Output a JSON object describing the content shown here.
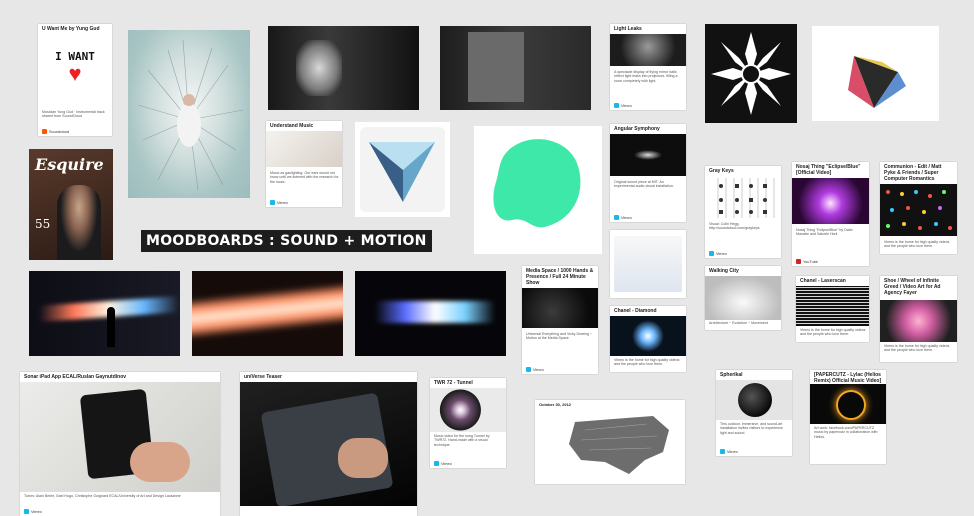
{
  "board": {
    "title": "MOODBOARDS : SOUND + MOTION"
  },
  "cards": {
    "iwant": {
      "title": "U Want Me by Yung Gud",
      "art_text": "I WANT",
      "desc": "Musician Yung Gud · instrumental track shared from SoundCloud",
      "source": "Soundcloud"
    },
    "esquire": {
      "masthead": "Esquire",
      "issue": "55"
    },
    "understand": {
      "title": "Understand Music",
      "desc": "Music as gaslighting. Our ears would not know until we listened with the research for the loose.",
      "source": "Vimeo"
    },
    "lightleaks": {
      "title": "Light Leaks",
      "desc": "A spectacle display of flying mirror balls reflect light leaks into projectors. filling a room completely with light.",
      "source": "Vimeo"
    },
    "angular": {
      "title": "Angular Symphony",
      "desc": "Original sound piece at MIT. An experimental audio-visual installation.",
      "source": "Vimeo"
    },
    "graykeys": {
      "title": "Gray Keys",
      "desc": "Visual: Colin Hegg. http://soundcloud.com/graykeys",
      "source": "Vimeo"
    },
    "nosaj": {
      "title": "Nosaj Thing \"Eclipse/Blue\" [Official Video]",
      "desc": "Nosaj Thing \"Eclipse/Blue\" by Daito Manabe and Satoshi Horii",
      "source": "YouTube"
    },
    "communion": {
      "title": "Communion - Edit / Matt Pyke & Friends / Super Computer Romantics",
      "desc": "Vimeo is the home for high quality videos and the people who love them.",
      "source": "Vimeo"
    },
    "mediaspace": {
      "title": "Media Space / 1000 Hands & Presence / Full 24 Minute Show",
      "desc": "Universal Everything and Vicky Dearing ~ Motion at the Media Space",
      "source": "Vimeo"
    },
    "chanel": {
      "title": "Chanel - Diamond",
      "desc": "Vimeo is the home for high quality videos and the people who love them.",
      "source": "Vimeo"
    },
    "walking": {
      "title": "Walking City",
      "desc": "Architecture ~ Evolution ~ Movement",
      "source": "Vimeo"
    },
    "laserscan": {
      "title": "Chanel - Laserscan",
      "desc": "Vimeo is the home for high quality videos and the people who love them.",
      "source": "Vimeo"
    },
    "shoe": {
      "title": "Shoe / Wheel of Infinite Greed / Video Art for Ad Agency Fayer",
      "desc": "Vimeo is the home for high quality videos and the people who love them.",
      "source": "Vimeo"
    },
    "sonar": {
      "title": "Sonar iPad App ECAL/Ruslan Gaynutdinov",
      "desc": "Tutors: Alain Bellet, Gael Hugo, Christophe Guignard ECAL/University of Art and Design Lausanne",
      "source": "Vimeo"
    },
    "universe": {
      "title": "uniVerse Teaser",
      "source": "Vimeo"
    },
    "twr": {
      "title": "TWR 72 - Tunnel",
      "desc": "Music video for the song Tunnel by TWR72. Hand-made with a visual technique.",
      "source": "Vimeo"
    },
    "usmap": {
      "title": "October 30, 2012"
    },
    "spherical": {
      "title": "Spherikal",
      "desc": "This outdoor, immersive, and sound-art installation invites visitors to experience light and sound.",
      "source": "Vimeo"
    },
    "papercutz": {
      "title": "[PAPERCUTZ - Lylac (Helios Remix) Official Music Video]",
      "desc": "Art work: facebook.com/PAPERCUTZ music by papercutz in collaboration with Helios.",
      "source": "Vimeo"
    }
  },
  "colors": {
    "background": "#e7e7e7",
    "vimeo": "#1ab7ea",
    "youtube": "#d62424",
    "soundcloud": "#ff5500",
    "mint": "#3de8a8"
  }
}
